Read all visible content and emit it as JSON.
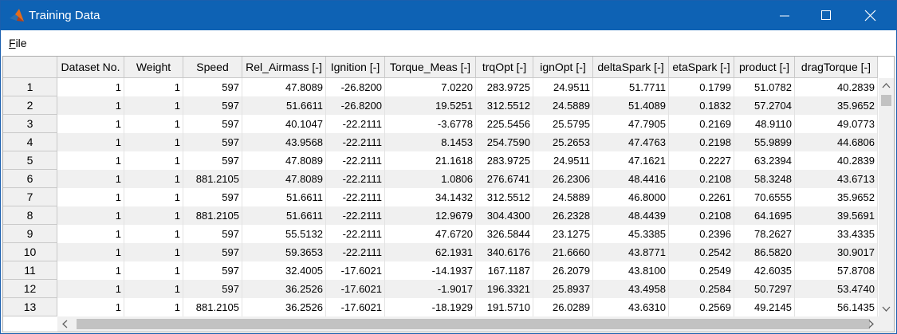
{
  "window": {
    "title": "Training Data",
    "menu": [
      "File"
    ]
  },
  "table": {
    "columns": [
      "Dataset No.",
      "Weight",
      "Speed",
      "Rel_Airmass [-]",
      "Ignition [-]",
      "Torque_Meas [-]",
      "trqOpt [-]",
      "ignOpt [-]",
      "deltaSpark [-]",
      "etaSpark [-]",
      "product [-]",
      "dragTorque [-]"
    ],
    "row_labels": [
      "1",
      "2",
      "3",
      "4",
      "5",
      "6",
      "7",
      "8",
      "9",
      "10",
      "11",
      "12",
      "13"
    ],
    "rows": [
      [
        "1",
        "1",
        "597",
        "47.8089",
        "-26.8200",
        "7.0220",
        "283.9725",
        "24.9511",
        "51.7711",
        "0.1799",
        "51.0782",
        "40.2839"
      ],
      [
        "1",
        "1",
        "597",
        "51.6611",
        "-26.8200",
        "19.5251",
        "312.5512",
        "24.5889",
        "51.4089",
        "0.1832",
        "57.2704",
        "35.9652"
      ],
      [
        "1",
        "1",
        "597",
        "40.1047",
        "-22.2111",
        "-3.6778",
        "225.5456",
        "25.5795",
        "47.7905",
        "0.2169",
        "48.9110",
        "49.0773"
      ],
      [
        "1",
        "1",
        "597",
        "43.9568",
        "-22.2111",
        "8.1453",
        "254.7590",
        "25.2653",
        "47.4763",
        "0.2198",
        "55.9899",
        "44.6806"
      ],
      [
        "1",
        "1",
        "597",
        "47.8089",
        "-22.2111",
        "21.1618",
        "283.9725",
        "24.9511",
        "47.1621",
        "0.2227",
        "63.2394",
        "40.2839"
      ],
      [
        "1",
        "1",
        "881.2105",
        "47.8089",
        "-22.2111",
        "1.0806",
        "276.6741",
        "26.2306",
        "48.4416",
        "0.2108",
        "58.3248",
        "43.6713"
      ],
      [
        "1",
        "1",
        "597",
        "51.6611",
        "-22.2111",
        "34.1432",
        "312.5512",
        "24.5889",
        "46.8000",
        "0.2261",
        "70.6555",
        "35.9652"
      ],
      [
        "1",
        "1",
        "881.2105",
        "51.6611",
        "-22.2111",
        "12.9679",
        "304.4300",
        "26.2328",
        "48.4439",
        "0.2108",
        "64.1695",
        "39.5691"
      ],
      [
        "1",
        "1",
        "597",
        "55.5132",
        "-22.2111",
        "47.6720",
        "326.5844",
        "23.1275",
        "45.3385",
        "0.2396",
        "78.2627",
        "33.4335"
      ],
      [
        "1",
        "1",
        "597",
        "59.3653",
        "-22.2111",
        "62.1931",
        "340.6176",
        "21.6660",
        "43.8771",
        "0.2542",
        "86.5820",
        "30.9017"
      ],
      [
        "1",
        "1",
        "597",
        "32.4005",
        "-17.6021",
        "-14.1937",
        "167.1187",
        "26.2079",
        "43.8100",
        "0.2549",
        "42.6035",
        "57.8708"
      ],
      [
        "1",
        "1",
        "597",
        "36.2526",
        "-17.6021",
        "-1.9017",
        "196.3321",
        "25.8937",
        "43.4958",
        "0.2584",
        "50.7297",
        "53.4740"
      ],
      [
        "1",
        "1",
        "881.2105",
        "36.2526",
        "-17.6021",
        "-18.1929",
        "191.5710",
        "26.0289",
        "43.6310",
        "0.2569",
        "49.2145",
        "56.1435"
      ]
    ]
  }
}
